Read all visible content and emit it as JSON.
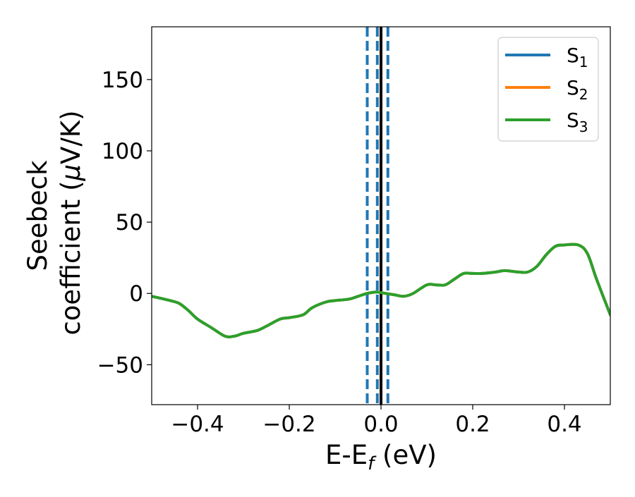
{
  "chart_data": {
    "type": "line",
    "xlabel": {
      "main": "E-E",
      "sub": "f",
      "suffix": " (eV)"
    },
    "ylabel_line1": "Seebeck",
    "ylabel_line2": {
      "main": "coefficient  (",
      "greek": "μ",
      "suffix": "V/K)"
    },
    "xlim": [
      -0.5,
      0.5
    ],
    "ylim": [
      -78,
      187
    ],
    "x_ticks": [
      -0.4,
      -0.2,
      0.0,
      0.2,
      0.4
    ],
    "x_tick_labels": [
      "−0.4",
      "−0.2",
      "0.0",
      "0.2",
      "0.4"
    ],
    "y_ticks": [
      -50,
      0,
      50,
      100,
      150
    ],
    "y_tick_labels": [
      "−50",
      "0",
      "50",
      "100",
      "150"
    ],
    "legend_position": "top-right",
    "legend": [
      {
        "main": "S",
        "sub": "1",
        "color": "#1f77b4"
      },
      {
        "main": "S",
        "sub": "2",
        "color": "#ff7f0e"
      },
      {
        "main": "S",
        "sub": "3",
        "color": "#2ca02c"
      }
    ],
    "x": [
      -0.5,
      -0.46,
      -0.44,
      -0.42,
      -0.4,
      -0.37,
      -0.34,
      -0.32,
      -0.3,
      -0.27,
      -0.25,
      -0.22,
      -0.2,
      -0.17,
      -0.15,
      -0.12,
      -0.1,
      -0.07,
      -0.05,
      -0.03,
      -0.01,
      0.01,
      0.03,
      0.05,
      0.07,
      0.1,
      0.12,
      0.14,
      0.16,
      0.18,
      0.2,
      0.22,
      0.25,
      0.27,
      0.3,
      0.32,
      0.34,
      0.36,
      0.38,
      0.4,
      0.43,
      0.45,
      0.47,
      0.5
    ],
    "series": [
      {
        "legend_index": 0,
        "color": "#1f77b4",
        "values": [
          -2,
          -5,
          -7,
          -12,
          -18,
          -24,
          -30,
          -30,
          -28,
          -26,
          -23,
          -18,
          -17,
          -15,
          -10,
          -6,
          -5,
          -4,
          -2,
          0,
          1,
          0,
          -1,
          -2,
          0,
          6,
          6,
          6,
          10,
          14,
          14,
          14,
          15,
          16,
          15,
          15,
          19,
          27,
          33,
          34,
          34,
          28,
          10,
          -15
        ]
      },
      {
        "legend_index": 1,
        "color": "#ff7f0e",
        "values": [
          -2,
          -5,
          -7,
          -12,
          -18,
          -24,
          -30,
          -30,
          -28,
          -26,
          -23,
          -18,
          -17,
          -15,
          -10,
          -6,
          -5,
          -4,
          -2,
          0,
          1,
          0,
          -1,
          -2,
          0,
          6,
          6,
          6,
          10,
          14,
          14,
          14,
          15,
          16,
          15,
          15,
          19,
          27,
          33,
          34,
          34,
          28,
          10,
          -15
        ]
      },
      {
        "legend_index": 2,
        "color": "#2ca02c",
        "values": [
          -2,
          -5,
          -7,
          -12,
          -18,
          -24,
          -30,
          -30,
          -28,
          -26,
          -23,
          -18,
          -17,
          -15,
          -10,
          -6,
          -5,
          -4,
          -2,
          0,
          1,
          0,
          -1,
          -2,
          0,
          6,
          6,
          6,
          10,
          14,
          14,
          14,
          15,
          16,
          15,
          15,
          19,
          27,
          33,
          34,
          34,
          28,
          10,
          -15
        ]
      }
    ],
    "vertical_lines": [
      {
        "x": -0.03,
        "style": "dashed",
        "color": "#1f77b4"
      },
      {
        "x": -0.008,
        "style": "dashed",
        "color": "#1f77b4"
      },
      {
        "x": 0.015,
        "style": "dashed",
        "color": "#1f77b4"
      },
      {
        "x": 0.0,
        "style": "solid",
        "color": "#000000"
      }
    ]
  }
}
